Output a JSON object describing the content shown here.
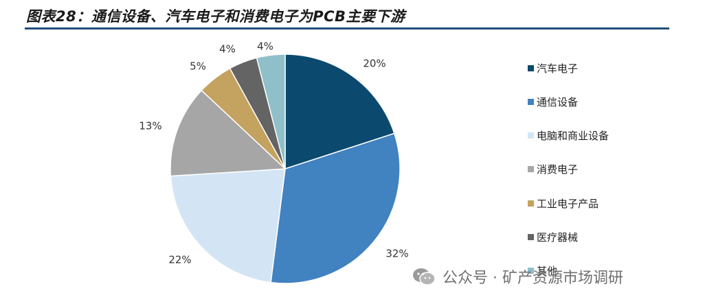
{
  "header": {
    "title": "图表28：通信设备、汽车电子和消费电子为PCB主要下游"
  },
  "chart_data": {
    "type": "pie",
    "title": "",
    "slices": [
      {
        "label": "汽车电子",
        "value": 20,
        "value_label": "20%",
        "color": "#0b4a6e"
      },
      {
        "label": "通信设备",
        "value": 32,
        "value_label": "32%",
        "color": "#4182c0"
      },
      {
        "label": "电脑和商业设备",
        "value": 22,
        "value_label": "22%",
        "color": "#d3e5f4"
      },
      {
        "label": "消费电子",
        "value": 13,
        "value_label": "13%",
        "color": "#a6a6a6"
      },
      {
        "label": "工业电子产品",
        "value": 5,
        "value_label": "5%",
        "color": "#c4a25f"
      },
      {
        "label": "医疗器械",
        "value": 4,
        "value_label": "4%",
        "color": "#646464"
      },
      {
        "label": "其他",
        "value": 4,
        "value_label": "4%",
        "color": "#8fc0c9"
      }
    ],
    "legend_position": "right"
  },
  "watermark": {
    "text": "公众号 · 矿产资源市场调研",
    "icon": "wechat-icon"
  }
}
